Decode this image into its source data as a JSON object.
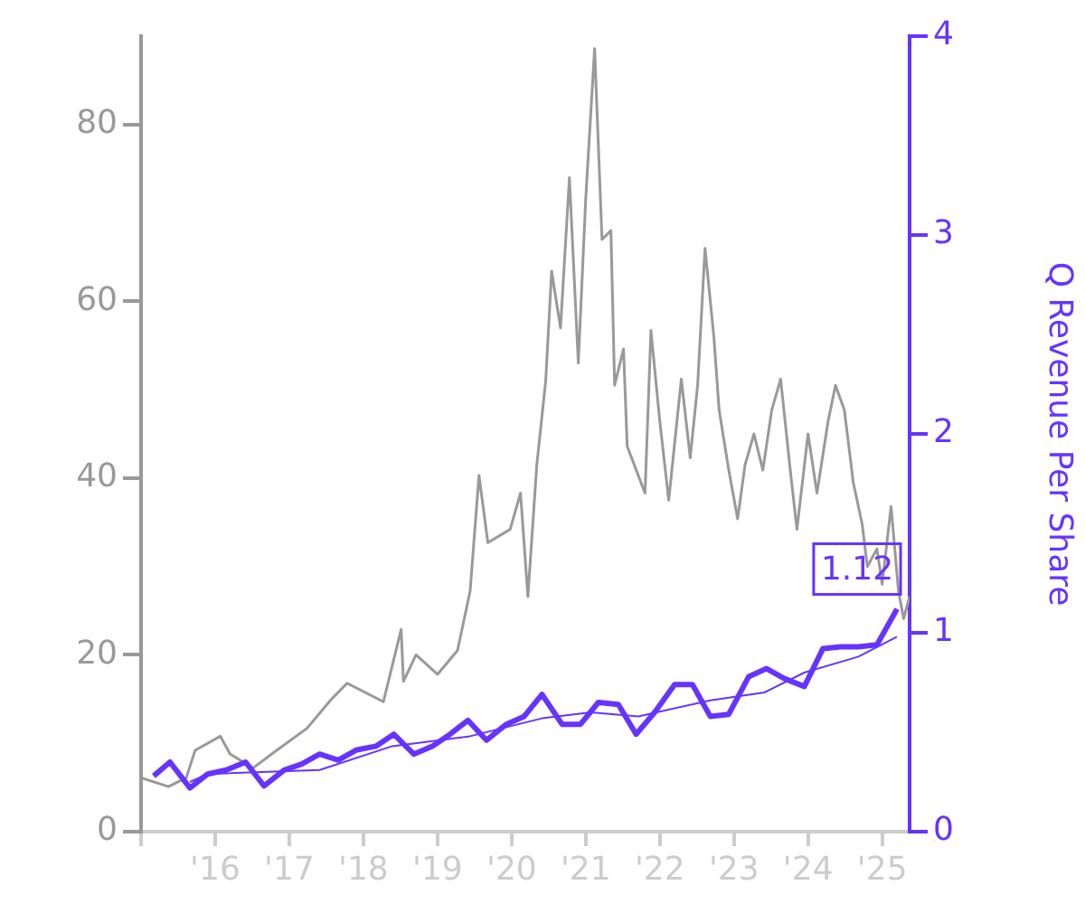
{
  "chart_data": {
    "type": "line",
    "y2label": "Q Revenue Per Share",
    "xlim": [
      2015,
      2025.37
    ],
    "xticks": [
      {
        "value": 2015,
        "label": null
      },
      {
        "value": 2016,
        "label": "'16"
      },
      {
        "value": 2017,
        "label": "'17"
      },
      {
        "value": 2018,
        "label": "'18"
      },
      {
        "value": 2019,
        "label": "'19"
      },
      {
        "value": 2020,
        "label": "'20"
      },
      {
        "value": 2021,
        "label": "'21"
      },
      {
        "value": 2022,
        "label": "'22"
      },
      {
        "value": 2023,
        "label": "'23"
      },
      {
        "value": 2024,
        "label": "'24"
      },
      {
        "value": 2025,
        "label": "'25"
      }
    ],
    "ylim": [
      0,
      90
    ],
    "yticks": [
      0,
      20,
      40,
      60,
      80
    ],
    "y2lim": [
      0,
      4
    ],
    "y2ticks": [
      0,
      1,
      2,
      3,
      4
    ],
    "grid": false,
    "legend": false,
    "marker": "none",
    "line_style": "solid",
    "series": [
      {
        "color": "#999999",
        "x": [
          2015,
          2015.37,
          2015.61,
          2015.73,
          2016.07,
          2016.2,
          2016.51,
          2016.83,
          2017.24,
          2017.56,
          2017.78,
          2018.27,
          2018.51,
          2018.54,
          2018.71,
          2019,
          2019.27,
          2019.44,
          2019.56,
          2019.68,
          2019.98,
          2020.12,
          2020.22,
          2020.34,
          2020.46,
          2020.54,
          2020.66,
          2020.78,
          2020.9,
          2021,
          2021.12,
          2021.22,
          2021.34,
          2021.39,
          2021.51,
          2021.56,
          2021.8,
          2021.88,
          2022,
          2022.12,
          2022.29,
          2022.41,
          2022.51,
          2022.61,
          2022.73,
          2022.8,
          2022.93,
          2023.05,
          2023.15,
          2023.27,
          2023.39,
          2023.51,
          2023.63,
          2023.76,
          2023.85,
          2024,
          2024.12,
          2024.27,
          2024.37,
          2024.49,
          2024.61,
          2024.73,
          2024.8,
          2024.93,
          2025,
          2025.12,
          2025.22,
          2025.29,
          2025.37
        ],
        "values": [
          6.1,
          5.1,
          6.1,
          9.2,
          10.8,
          8.8,
          7.2,
          9.2,
          11.7,
          14.9,
          16.8,
          14.7,
          22.9,
          17,
          20,
          17.8,
          20.5,
          27.2,
          40.3,
          32.7,
          34.2,
          38.3,
          26.6,
          41.5,
          51,
          63.4,
          57,
          74,
          53,
          71.6,
          88.6,
          67,
          68,
          50.5,
          54.6,
          43.6,
          38.3,
          56.7,
          46.4,
          37.5,
          51.2,
          42.3,
          50.5,
          66,
          55.9,
          47.7,
          40.9,
          35.4,
          41.5,
          45,
          40.9,
          47.7,
          51.2,
          40.9,
          34.2,
          45,
          38.3,
          46.4,
          50.5,
          47.7,
          39.5,
          34.8,
          30,
          32,
          28,
          36.8,
          27.2,
          24.1,
          26.6
        ]
      },
      {
        "color": "#6633ff",
        "axis": "y2",
        "x": [
          2015.17,
          2015.39,
          2015.66,
          2015.9,
          2016.15,
          2016.41,
          2016.66,
          2016.93,
          2017.17,
          2017.41,
          2017.66,
          2017.9,
          2018.17,
          2018.41,
          2018.68,
          2018.93,
          2019.17,
          2019.41,
          2019.66,
          2019.93,
          2020.17,
          2020.41,
          2020.68,
          2020.93,
          2021.17,
          2021.44,
          2021.68,
          2021.93,
          2022.2,
          2022.44,
          2022.68,
          2022.93,
          2023.2,
          2023.44,
          2023.68,
          2023.95,
          2024.2,
          2024.44,
          2024.68,
          2024.93,
          2025.2
        ],
        "values": [
          0.28,
          0.35,
          0.22,
          0.29,
          0.31,
          0.35,
          0.23,
          0.31,
          0.34,
          0.39,
          0.36,
          0.41,
          0.43,
          0.49,
          0.39,
          0.43,
          0.49,
          0.56,
          0.46,
          0.54,
          0.58,
          0.69,
          0.54,
          0.54,
          0.65,
          0.64,
          0.49,
          0.6,
          0.74,
          0.74,
          0.58,
          0.59,
          0.78,
          0.82,
          0.77,
          0.73,
          0.92,
          0.93,
          0.93,
          0.94,
          1.12
        ],
        "value_labels": [
          null,
          null,
          null,
          null,
          null,
          null,
          null,
          null,
          null,
          null,
          null,
          null,
          null,
          null,
          null,
          null,
          null,
          null,
          null,
          null,
          null,
          null,
          null,
          null,
          null,
          null,
          null,
          null,
          null,
          null,
          null,
          null,
          null,
          null,
          null,
          null,
          null,
          null,
          null,
          null,
          "1.12"
        ]
      },
      {
        "color": "#6633ff",
        "axis": "y2",
        "x": [
          2015.66,
          2015.9,
          2017.41,
          2018.39,
          2019.44,
          2020.41,
          2021.07,
          2021.71,
          2022.68,
          2023.41,
          2023.95,
          2024.68,
          2025.2
        ],
        "values": [
          0.25,
          0.29,
          0.31,
          0.43,
          0.48,
          0.57,
          0.6,
          0.58,
          0.66,
          0.7,
          0.8,
          0.88,
          0.98
        ]
      }
    ]
  }
}
